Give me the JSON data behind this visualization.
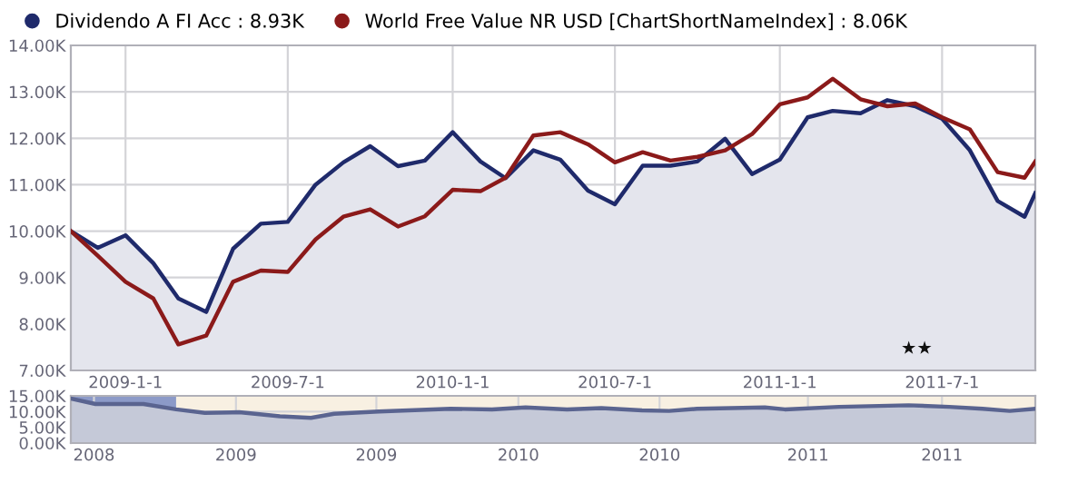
{
  "chart_data": [
    {
      "type": "line",
      "x": [
        "2008-11-01",
        "2008-12-01",
        "2009-01-01",
        "2009-02-01",
        "2009-03-01",
        "2009-04-01",
        "2009-05-01",
        "2009-06-01",
        "2009-07-01",
        "2009-08-01",
        "2009-09-01",
        "2009-10-01",
        "2009-11-01",
        "2009-12-01",
        "2010-01-01",
        "2010-02-01",
        "2010-03-01",
        "2010-04-01",
        "2010-05-01",
        "2010-06-01",
        "2010-07-01",
        "2010-08-01",
        "2010-09-01",
        "2010-10-01",
        "2010-11-01",
        "2010-12-01",
        "2011-01-01",
        "2011-02-01",
        "2011-03-01",
        "2011-04-01",
        "2011-05-01",
        "2011-06-01",
        "2011-07-01",
        "2011-08-01",
        "2011-09-01",
        "2011-10-01",
        "2011-10-13"
      ],
      "series": [
        {
          "name": "Dividendo A FI Acc : 8.93K",
          "type": "area",
          "color": "#1f2a6b",
          "values": [
            10.0,
            9.64,
            9.91,
            9.31,
            8.55,
            8.26,
            9.62,
            10.16,
            10.2,
            11.0,
            11.48,
            11.83,
            11.4,
            11.52,
            12.13,
            11.5,
            11.14,
            11.74,
            11.54,
            10.87,
            10.58,
            11.41,
            11.41,
            11.5,
            11.99,
            11.23,
            11.54,
            12.45,
            12.59,
            12.54,
            12.82,
            12.69,
            12.42,
            11.74,
            10.65,
            10.31,
            10.82
          ]
        },
        {
          "name": "World Free Value NR USD [ChartShortNameIndex] : 8.06K",
          "type": "line",
          "color": "#8b1a1a",
          "values": [
            10.0,
            9.47,
            8.91,
            8.55,
            7.56,
            7.75,
            8.91,
            9.15,
            9.12,
            9.82,
            10.31,
            10.47,
            10.1,
            10.32,
            10.89,
            10.86,
            11.15,
            12.06,
            12.13,
            11.87,
            11.48,
            11.7,
            11.52,
            11.6,
            11.74,
            12.09,
            12.73,
            12.88,
            13.28,
            12.84,
            12.69,
            12.75,
            12.45,
            12.19,
            11.27,
            11.15,
            11.5
          ]
        }
      ],
      "xlim": [
        "2008-11-01",
        "2011-10-13"
      ],
      "xticks": [
        {
          "value": "2009-01-01",
          "label": "2009-1-1"
        },
        {
          "value": "2009-07-01",
          "label": "2009-7-1"
        },
        {
          "value": "2010-01-01",
          "label": "2010-1-1"
        },
        {
          "value": "2010-07-01",
          "label": "2010-7-1"
        },
        {
          "value": "2011-01-01",
          "label": "2011-1-1"
        },
        {
          "value": "2011-07-01",
          "label": "2011-7-1"
        }
      ],
      "ylim": [
        7,
        14
      ],
      "yticks": [
        {
          "value": 7,
          "label": "7.00K"
        },
        {
          "value": 8,
          "label": "8.00K"
        },
        {
          "value": 9,
          "label": "9.00K"
        },
        {
          "value": 10,
          "label": "10.00K"
        },
        {
          "value": 11,
          "label": "11.00K"
        },
        {
          "value": 12,
          "label": "12.00K"
        },
        {
          "value": 13,
          "label": "13.00K"
        },
        {
          "value": 14,
          "label": "14.00K"
        }
      ],
      "grid": true,
      "legend": "top left",
      "annotations": [
        "★★"
      ]
    },
    {
      "type": "area",
      "x": [
        "2008-06-23",
        "2008-07-23",
        "2008-09-21",
        "2008-11-01",
        "2008-12-07",
        "2009-01-19",
        "2009-03-11",
        "2009-04-19",
        "2009-05-18",
        "2009-07-13",
        "2009-10-11",
        "2009-12-02",
        "2010-01-13",
        "2010-03-06",
        "2010-04-18",
        "2010-06-08",
        "2010-07-12",
        "2010-08-16",
        "2010-11-09",
        "2010-12-04",
        "2011-02-10",
        "2011-05-08",
        "2011-06-28",
        "2011-08-09",
        "2011-09-12",
        "2011-10-14"
      ],
      "series": [
        {
          "color": "#5a6490",
          "values": [
            14.1,
            12.4,
            12.4,
            10.7,
            9.6,
            9.8,
            8.5,
            8.0,
            9.3,
            10.0,
            10.9,
            10.7,
            11.3,
            10.7,
            11.1,
            10.4,
            10.2,
            10.9,
            11.3,
            10.7,
            11.5,
            12.0,
            11.5,
            10.9,
            10.2,
            10.9
          ]
        }
      ],
      "xlim": [
        "2008-06-22",
        "2011-10-14"
      ],
      "xticks": [
        {
          "value": "2008-07-21",
          "label": "2008"
        },
        {
          "value": "2009-01-15",
          "label": "2009"
        },
        {
          "value": "2009-07-10",
          "label": "2009"
        },
        {
          "value": "2010-01-04",
          "label": "2010"
        },
        {
          "value": "2010-06-30",
          "label": "2010"
        },
        {
          "value": "2011-01-02",
          "label": "2011"
        },
        {
          "value": "2011-06-19",
          "label": "2011"
        }
      ],
      "ylim": [
        0,
        15
      ],
      "yticks": [
        {
          "value": 0,
          "label": "0.00K"
        },
        {
          "value": 5,
          "label": "5.00K"
        },
        {
          "value": 10,
          "label": "10.00K"
        },
        {
          "value": 15,
          "label": "15.00K"
        }
      ],
      "grid": true,
      "bands": [
        {
          "axis": "x",
          "from": "2008-06-22",
          "to": "2008-11-01",
          "color": "#8c9ac8"
        },
        {
          "axis": "x",
          "from": "2008-11-01",
          "to": "2011-10-14",
          "color": "#f8f0e2"
        }
      ]
    }
  ]
}
